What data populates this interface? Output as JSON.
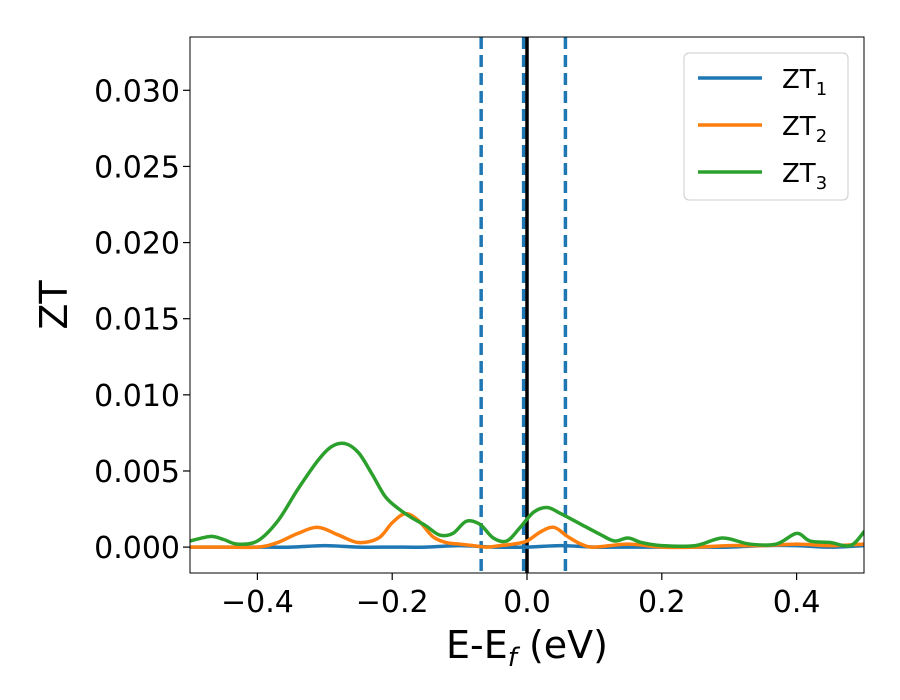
{
  "chart_data": {
    "type": "line",
    "xlabel": {
      "main": "E-E",
      "sub": "f",
      "unit": " (eV)"
    },
    "ylabel": "ZT",
    "xlim": [
      -0.5,
      0.5
    ],
    "ylim": [
      -0.0017,
      0.0335
    ],
    "xticks": [
      -0.4,
      -0.2,
      0.0,
      0.2,
      0.4
    ],
    "xtick_labels": [
      "−0.4",
      "−0.2",
      "0.0",
      "0.2",
      "0.4"
    ],
    "yticks": [
      0.0,
      0.005,
      0.01,
      0.015,
      0.02,
      0.025,
      0.03
    ],
    "ytick_labels": [
      "0.000",
      "0.005",
      "0.010",
      "0.015",
      "0.020",
      "0.025",
      "0.030"
    ],
    "grid": false,
    "legend_position": "top-right",
    "vlines": [
      {
        "x": -0.068,
        "style": "dashed",
        "color": "#1f77b4"
      },
      {
        "x": -0.005,
        "style": "dashed",
        "color": "#1f77b4"
      },
      {
        "x": 0.0,
        "style": "solid",
        "color": "#000000"
      },
      {
        "x": 0.057,
        "style": "dashed",
        "color": "#1f77b4"
      }
    ],
    "series": [
      {
        "name": "ZT",
        "sub": "1",
        "color": "#1f77b4",
        "x": [
          -0.5,
          -0.45,
          -0.4,
          -0.35,
          -0.3,
          -0.25,
          -0.2,
          -0.15,
          -0.1,
          -0.05,
          0.0,
          0.05,
          0.1,
          0.15,
          0.2,
          0.25,
          0.3,
          0.35,
          0.4,
          0.45,
          0.5
        ],
        "y": [
          0.0,
          0.0,
          0.0,
          0.0,
          0.0001,
          0.0,
          0.0,
          0.0,
          0.0001,
          0.0,
          0.0,
          0.0001,
          0.0,
          0.0,
          0.0,
          0.0,
          0.0,
          0.0001,
          0.0001,
          0.0,
          0.0001
        ]
      },
      {
        "name": "ZT",
        "sub": "2",
        "color": "#ff7f0e",
        "x": [
          -0.5,
          -0.45,
          -0.4,
          -0.37,
          -0.34,
          -0.31,
          -0.28,
          -0.25,
          -0.22,
          -0.2,
          -0.18,
          -0.16,
          -0.14,
          -0.12,
          -0.1,
          -0.08,
          -0.06,
          -0.04,
          -0.02,
          0.0,
          0.02,
          0.04,
          0.06,
          0.08,
          0.1,
          0.15,
          0.2,
          0.25,
          0.3,
          0.35,
          0.4,
          0.45,
          0.5
        ],
        "y": [
          0.0,
          0.0,
          0.0,
          0.0003,
          0.0009,
          0.0013,
          0.0008,
          0.0003,
          0.0006,
          0.0016,
          0.0022,
          0.0017,
          0.0007,
          0.0003,
          0.0002,
          0.0001,
          0.0,
          0.0001,
          0.0002,
          0.0004,
          0.001,
          0.0013,
          0.0007,
          0.0002,
          0.0,
          0.0002,
          0.0,
          0.0,
          0.0001,
          0.0001,
          0.0002,
          0.0001,
          0.0002
        ]
      },
      {
        "name": "ZT",
        "sub": "3",
        "color": "#2ca02c",
        "x": [
          -0.5,
          -0.47,
          -0.45,
          -0.43,
          -0.4,
          -0.37,
          -0.34,
          -0.31,
          -0.29,
          -0.27,
          -0.25,
          -0.23,
          -0.21,
          -0.19,
          -0.17,
          -0.15,
          -0.13,
          -0.11,
          -0.09,
          -0.07,
          -0.05,
          -0.03,
          -0.01,
          0.01,
          0.03,
          0.05,
          0.08,
          0.11,
          0.13,
          0.15,
          0.17,
          0.2,
          0.25,
          0.29,
          0.33,
          0.37,
          0.4,
          0.42,
          0.45,
          0.48,
          0.5
        ],
        "y": [
          0.0004,
          0.0007,
          0.0005,
          0.0002,
          0.0004,
          0.0017,
          0.0038,
          0.0057,
          0.0066,
          0.0068,
          0.0062,
          0.0048,
          0.0033,
          0.0025,
          0.0019,
          0.0014,
          0.0008,
          0.0009,
          0.0017,
          0.0015,
          0.0006,
          0.0004,
          0.0013,
          0.0023,
          0.0026,
          0.0022,
          0.0015,
          0.0008,
          0.0004,
          0.0006,
          0.0003,
          0.0001,
          0.0001,
          0.0006,
          0.0002,
          0.0002,
          0.0009,
          0.0004,
          0.0003,
          0.0001,
          0.001
        ]
      }
    ]
  }
}
